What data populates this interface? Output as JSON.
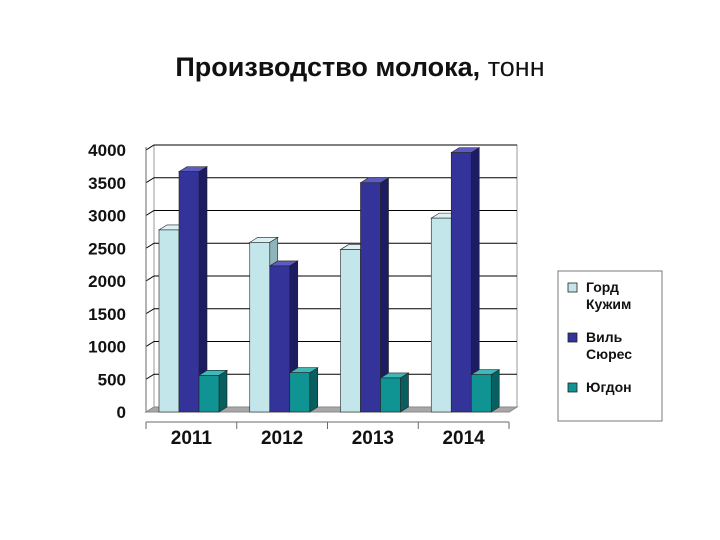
{
  "title": {
    "bold": "Производство молока,",
    "normal": "тонн"
  },
  "colors": {
    "background": "#ffffff",
    "gridline": "#000000",
    "floor": "#a8a8a8",
    "series": [
      {
        "front": "#c3e6ea",
        "side": "#8fb4b9",
        "top": "#dbf1f3"
      },
      {
        "front": "#33339a",
        "side": "#1c1c63",
        "top": "#5c5cc0"
      },
      {
        "front": "#0f9393",
        "side": "#075f5f",
        "top": "#3fb8b8"
      }
    ]
  },
  "chart_data": {
    "type": "bar",
    "categories": [
      "2011",
      "2012",
      "2013",
      "2014"
    ],
    "series": [
      {
        "name": "Горд Кужим",
        "legend_lines": [
          "Горд",
          "Кужим"
        ],
        "values": [
          2780,
          2590,
          2480,
          2960
        ]
      },
      {
        "name": "Виль Сюрес",
        "legend_lines": [
          "Виль",
          "Сюрес"
        ],
        "values": [
          3670,
          2230,
          3500,
          3960
        ]
      },
      {
        "name": "Югдон",
        "legend_lines": [
          "Югдон"
        ],
        "values": [
          560,
          600,
          520,
          570
        ]
      }
    ],
    "yticks": [
      "0",
      "500",
      "1000",
      "1500",
      "2000",
      "2500",
      "3000",
      "3500",
      "4000"
    ],
    "ylim": [
      0,
      4000
    ],
    "grid": true,
    "legend_position": "right",
    "style": "3d"
  }
}
